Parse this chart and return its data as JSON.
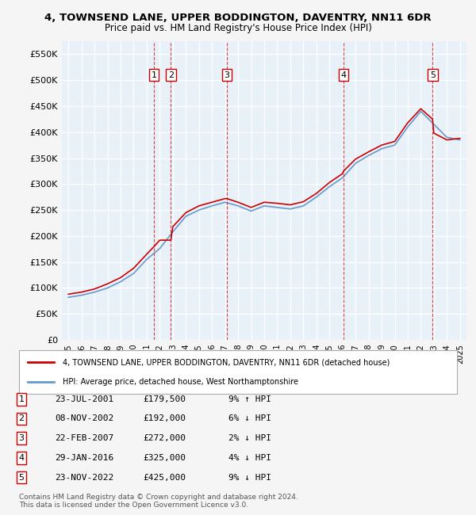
{
  "title": "4, TOWNSEND LANE, UPPER BODDINGTON, DAVENTRY, NN11 6DR",
  "subtitle": "Price paid vs. HM Land Registry's House Price Index (HPI)",
  "ylabel": "",
  "ylim": [
    0,
    575000
  ],
  "yticks": [
    0,
    50000,
    100000,
    150000,
    200000,
    250000,
    300000,
    350000,
    400000,
    450000,
    500000,
    550000
  ],
  "ytick_labels": [
    "£0",
    "£50K",
    "£100K",
    "£150K",
    "£200K",
    "£250K",
    "£300K",
    "£350K",
    "£400K",
    "£450K",
    "£500K",
    "£550K"
  ],
  "bg_color": "#e8f0f8",
  "plot_bg_color": "#e8f0f8",
  "grid_color": "#ffffff",
  "sale_color": "#cc0000",
  "hpi_color": "#6699cc",
  "sales": [
    {
      "label": "1",
      "date_num": 2001.55,
      "price": 179500
    },
    {
      "label": "2",
      "date_num": 2002.85,
      "price": 192000
    },
    {
      "label": "3",
      "date_num": 2007.14,
      "price": 272000
    },
    {
      "label": "4",
      "date_num": 2016.08,
      "price": 325000
    },
    {
      "label": "5",
      "date_num": 2022.9,
      "price": 425000
    }
  ],
  "legend_line1": "4, TOWNSEND LANE, UPPER BODDINGTON, DAVENTRY, NN11 6DR (detached house)",
  "legend_line2": "HPI: Average price, detached house, West Northamptonshire",
  "table_rows": [
    [
      "1",
      "23-JUL-2001",
      "£179,500",
      "9% ↑ HPI"
    ],
    [
      "2",
      "08-NOV-2002",
      "£192,000",
      "6% ↓ HPI"
    ],
    [
      "3",
      "22-FEB-2007",
      "£272,000",
      "2% ↓ HPI"
    ],
    [
      "4",
      "29-JAN-2016",
      "£325,000",
      "4% ↓ HPI"
    ],
    [
      "5",
      "23-NOV-2022",
      "£425,000",
      "9% ↓ HPI"
    ]
  ],
  "footnote": "Contains HM Land Registry data © Crown copyright and database right 2024.\nThis data is licensed under the Open Government Licence v3.0.",
  "xmin": 1994.5,
  "xmax": 2025.5
}
